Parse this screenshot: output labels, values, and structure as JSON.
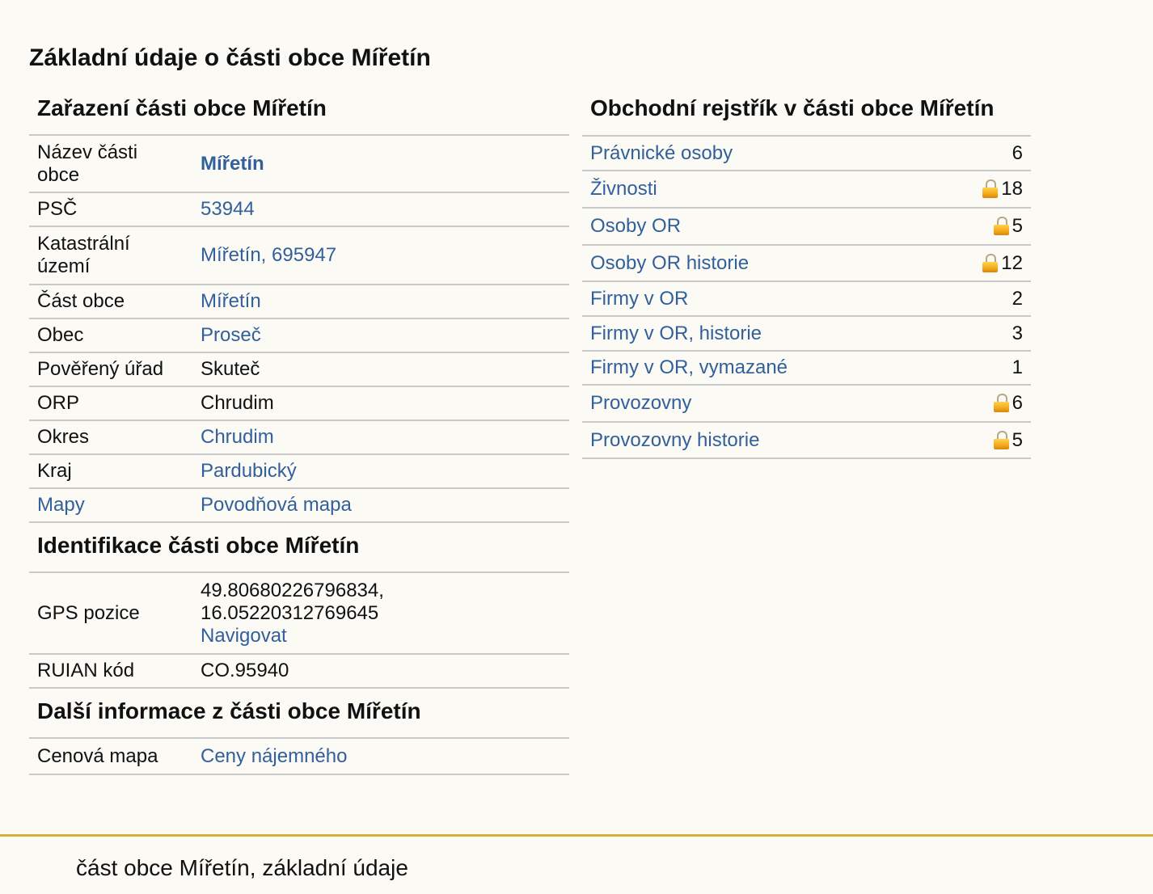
{
  "page_title": "Základní údaje o části obce Mířetín",
  "zarazeni": {
    "title": "Zařazení části obce Mířetín",
    "rows": [
      {
        "label": "Název části obce",
        "value": "Mířetín",
        "link": true,
        "bold": true
      },
      {
        "label": "PSČ",
        "value": "53944",
        "link": true
      },
      {
        "label": "Katastrální území",
        "value": "Mířetín, 695947",
        "link": true
      },
      {
        "label": "Část obce",
        "value": "Mířetín",
        "link": true
      },
      {
        "label": "Obec",
        "value": "Proseč",
        "link": true
      },
      {
        "label": "Pověřený úřad",
        "value": "Skuteč",
        "link": false
      },
      {
        "label": "ORP",
        "value": "Chrudim",
        "link": false
      },
      {
        "label": "Okres",
        "value": "Chrudim",
        "link": true
      },
      {
        "label": "Kraj",
        "value": "Pardubický",
        "link": true
      },
      {
        "label": "Mapy",
        "value": "Povodňová mapa",
        "link": true,
        "label_link": true
      }
    ]
  },
  "identifikace": {
    "title": "Identifikace části obce Mířetín",
    "gps_label": "GPS pozice",
    "gps_lat": "49.80680226796834,",
    "gps_lon": "16.05220312769645",
    "navigate_label": "Navigovat",
    "ruian_label": "RUIAN kód",
    "ruian_value": "CO.95940"
  },
  "dalsi": {
    "title": "Další informace z části obce Mířetín",
    "cenova_label": "Cenová mapa",
    "cenova_value": "Ceny nájemného"
  },
  "rejstrik": {
    "title": "Obchodní rejstřík v části obce Mířetín",
    "rows": [
      {
        "label": "Právnické osoby",
        "value": "6",
        "locked": false
      },
      {
        "label": "Živnosti",
        "value": "18",
        "locked": true
      },
      {
        "label": "Osoby OR",
        "value": "5",
        "locked": true
      },
      {
        "label": "Osoby OR historie",
        "value": "12",
        "locked": true
      },
      {
        "label": "Firmy v OR",
        "value": "2",
        "locked": false
      },
      {
        "label": "Firmy v OR, historie",
        "value": "3",
        "locked": false
      },
      {
        "label": "Firmy v OR, vymazané",
        "value": "1",
        "locked": false
      },
      {
        "label": "Provozovny",
        "value": "6",
        "locked": true
      },
      {
        "label": "Provozovny historie",
        "value": "5",
        "locked": true
      }
    ]
  },
  "footer": {
    "text": "část obce Mířetín, základní údaje"
  },
  "icons": {
    "lock": "lock-icon"
  },
  "colors": {
    "link": "#32609a",
    "footer_line": "#d4b13c",
    "background": "#fbfaf5"
  }
}
